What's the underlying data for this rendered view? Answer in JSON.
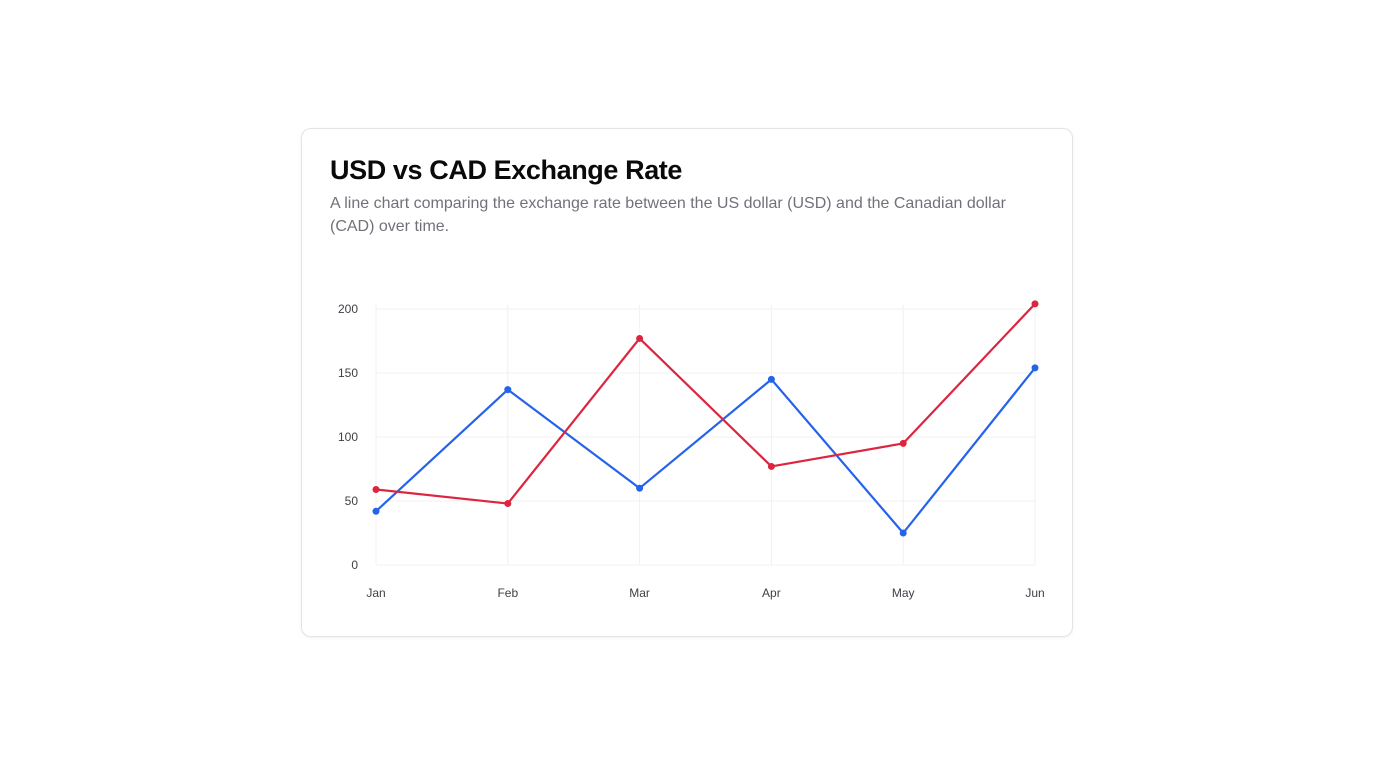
{
  "card": {
    "title": "USD vs CAD Exchange Rate",
    "subtitle": "A line chart comparing the exchange rate between the US dollar (USD) and the Canadian dollar (CAD) over time."
  },
  "chart_data": {
    "type": "line",
    "categories": [
      "Jan",
      "Feb",
      "Mar",
      "Apr",
      "May",
      "Jun"
    ],
    "series": [
      {
        "values": [
          42,
          137,
          60,
          145,
          25,
          154
        ],
        "color": "#2563eb"
      },
      {
        "values": [
          59,
          48,
          177,
          77,
          95,
          204
        ],
        "color": "#dc2640"
      }
    ],
    "y_ticks": [
      "0",
      "50",
      "100",
      "150",
      "200"
    ],
    "ylim": [
      0,
      200
    ],
    "grid": true,
    "legend": false,
    "xlabel": "",
    "ylabel": ""
  }
}
